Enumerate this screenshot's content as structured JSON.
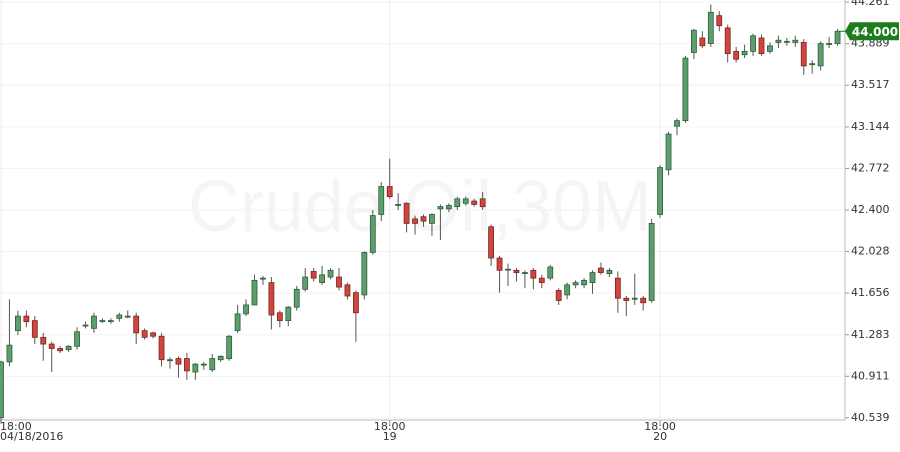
{
  "chart_data": {
    "type": "candlestick",
    "title": "Crude Oil,30M",
    "open": [
      40.54,
      41.04,
      41.32,
      41.45,
      41.41,
      41.26,
      41.2,
      41.16,
      41.15,
      41.18,
      41.37,
      41.34,
      41.41,
      41.41,
      41.43,
      41.45,
      41.45,
      41.32,
      41.3,
      41.27,
      41.06,
      41.07,
      41.07,
      40.95,
      41.02,
      40.97,
      41.06,
      41.07,
      41.32,
      41.47,
      41.55,
      41.79,
      41.75,
      41.48,
      41.41,
      41.53,
      41.69,
      41.85,
      41.75,
      41.8,
      41.8,
      41.73,
      41.66,
      41.64,
      42.02,
      42.36,
      42.61,
      42.45,
      42.46,
      42.32,
      42.34,
      42.28,
      42.41,
      42.41,
      42.43,
      42.46,
      42.48,
      42.5,
      42.25,
      41.97,
      41.87,
      41.86,
      41.84,
      41.86,
      41.79,
      41.79,
      41.68,
      41.64,
      41.73,
      41.73,
      41.75,
      41.88,
      41.83,
      41.79,
      41.61,
      41.61,
      41.61,
      41.59,
      42.36,
      42.76,
      43.15,
      43.2,
      43.81,
      43.94,
      43.89,
      44.14,
      44.03,
      43.82,
      43.79,
      43.82,
      43.94,
      43.82,
      43.9,
      43.91,
      43.9,
      43.9,
      43.71,
      43.69,
      43.89,
      43.89
    ],
    "high": [
      41.05,
      41.6,
      41.5,
      41.5,
      41.45,
      41.3,
      41.22,
      41.18,
      41.19,
      41.35,
      41.4,
      41.48,
      41.43,
      41.43,
      41.48,
      41.5,
      41.48,
      41.34,
      41.31,
      41.3,
      41.08,
      41.09,
      41.12,
      41.03,
      41.04,
      41.11,
      41.1,
      41.28,
      41.55,
      41.6,
      41.82,
      41.81,
      41.8,
      41.5,
      41.54,
      41.72,
      41.88,
      41.88,
      41.9,
      41.88,
      41.88,
      41.75,
      41.68,
      42.03,
      42.4,
      42.65,
      42.86,
      42.55,
      42.47,
      42.35,
      42.36,
      42.37,
      42.45,
      42.46,
      42.52,
      42.52,
      42.5,
      42.56,
      42.27,
      41.99,
      41.92,
      41.88,
      41.86,
      41.88,
      41.82,
      41.91,
      41.7,
      41.75,
      41.77,
      41.79,
      41.86,
      41.93,
      41.88,
      41.85,
      41.63,
      41.83,
      41.63,
      42.32,
      42.8,
      43.1,
      43.22,
      43.78,
      44.02,
      44.0,
      44.24,
      44.18,
      44.06,
      43.86,
      43.88,
      43.98,
      43.97,
      43.9,
      43.96,
      43.94,
      43.96,
      43.93,
      43.74,
      43.91,
      43.95,
      44.02
    ],
    "low": [
      40.5,
      41.0,
      41.28,
      41.35,
      41.2,
      41.05,
      40.95,
      41.12,
      41.13,
      41.15,
      41.34,
      41.3,
      41.39,
      41.38,
      41.4,
      41.43,
      41.2,
      41.24,
      41.25,
      41.0,
      40.98,
      40.9,
      40.88,
      40.88,
      40.97,
      40.95,
      41.04,
      41.05,
      41.3,
      41.45,
      41.55,
      41.73,
      41.33,
      41.35,
      41.36,
      41.5,
      41.67,
      41.76,
      41.73,
      41.78,
      41.68,
      41.6,
      41.22,
      41.6,
      42.0,
      42.3,
      42.5,
      42.4,
      42.2,
      42.18,
      42.25,
      42.17,
      42.13,
      42.38,
      42.4,
      42.44,
      42.43,
      42.4,
      41.9,
      41.66,
      41.72,
      41.76,
      41.7,
      41.69,
      41.7,
      41.77,
      41.55,
      41.6,
      41.7,
      41.7,
      41.65,
      41.82,
      41.8,
      41.48,
      41.45,
      41.55,
      41.5,
      41.57,
      42.33,
      42.71,
      43.07,
      43.18,
      43.75,
      43.85,
      43.86,
      44.0,
      43.72,
      43.72,
      43.76,
      43.78,
      43.78,
      43.8,
      43.85,
      43.87,
      43.86,
      43.61,
      43.62,
      43.65,
      43.85,
      43.87
    ],
    "close": [
      41.04,
      41.19,
      41.45,
      41.4,
      41.26,
      41.2,
      41.16,
      41.14,
      41.18,
      41.31,
      41.37,
      41.45,
      41.41,
      41.41,
      41.46,
      41.45,
      41.3,
      41.26,
      41.27,
      41.06,
      41.06,
      41.02,
      40.96,
      41.02,
      41.02,
      41.07,
      41.09,
      41.27,
      41.47,
      41.55,
      41.77,
      41.79,
      41.46,
      41.41,
      41.53,
      41.69,
      41.8,
      41.79,
      41.82,
      41.86,
      41.71,
      41.63,
      41.48,
      42.02,
      42.35,
      42.61,
      42.52,
      42.45,
      42.28,
      42.28,
      42.3,
      42.36,
      42.43,
      42.44,
      42.5,
      42.5,
      42.45,
      42.43,
      41.97,
      41.86,
      41.87,
      41.84,
      41.84,
      41.79,
      41.75,
      41.89,
      41.59,
      41.73,
      41.75,
      41.77,
      41.84,
      41.84,
      41.86,
      41.61,
      41.59,
      41.61,
      41.57,
      42.28,
      42.78,
      43.08,
      43.2,
      43.76,
      44.01,
      43.87,
      44.17,
      44.05,
      43.8,
      43.75,
      43.82,
      43.96,
      43.8,
      43.87,
      43.92,
      43.91,
      43.92,
      43.69,
      43.71,
      43.89,
      43.89,
      44.0
    ],
    "up_color": "#5c9e6e",
    "down_color": "#d0463f",
    "ylim": [
      40.52,
      44.28
    ],
    "yticks": [
      40.539,
      40.911,
      41.283,
      41.656,
      42.028,
      {
        "value": 42.4,
        "label": "42.400"
      },
      42.772,
      43.144,
      43.517,
      43.889,
      44.261
    ],
    "xticks": [
      {
        "value": 0,
        "label": "18:00",
        "sublabel": "04/18/2016"
      },
      {
        "value": 46,
        "label": "18:00",
        "sublabel": "19"
      },
      {
        "value": 78,
        "label": "18:00",
        "sublabel": "20"
      }
    ],
    "last_price": {
      "value": 44,
      "label": "44.000"
    },
    "grid": true
  }
}
